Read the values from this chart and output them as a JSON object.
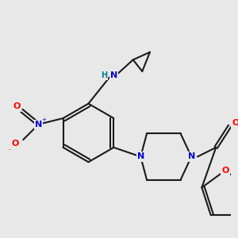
{
  "background_color": "#e8e8e8",
  "bond_color": "#1a1a1a",
  "atom_colors": {
    "N": "#0000cd",
    "O": "#ff0000",
    "H": "#008080",
    "C": "#1a1a1a"
  },
  "figsize": [
    3.0,
    3.0
  ],
  "dpi": 100
}
